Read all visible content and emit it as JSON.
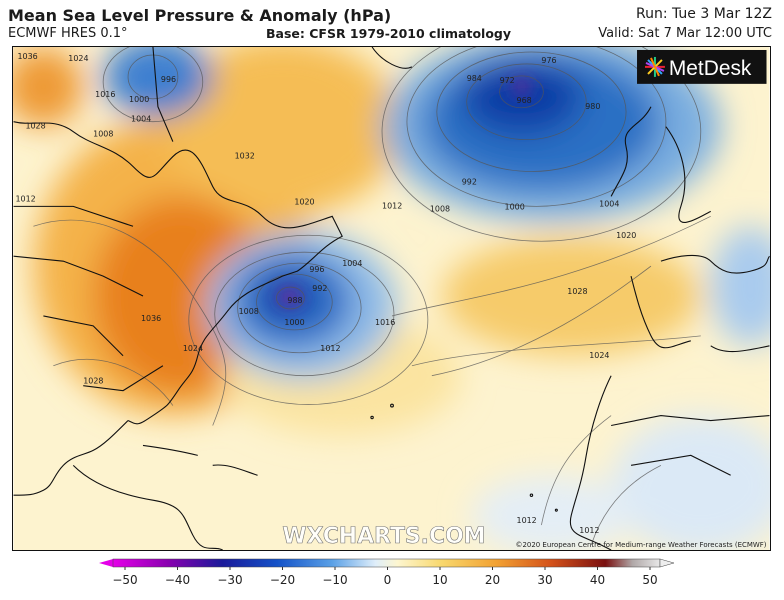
{
  "header": {
    "title": "Mean Sea Level Pressure & Anomaly (hPa)",
    "model": "ECMWF HRES 0.1°",
    "base": "Base: CFSR 1979-2010 climatology",
    "run": "Run: Tue 3 Mar 12Z",
    "valid": "Valid: Sat 7 Mar 12:00 UTC"
  },
  "map": {
    "logo_text": "MetDesk",
    "watermark": "WXCHARTS.COM",
    "copyright": "©2020 European Centre for Medium-range Weather Forecasts (ECMWF)",
    "isobar_labels": [
      "1036",
      "1024",
      "1016",
      "1012",
      "1000",
      "996",
      "1004",
      "1008",
      "1028",
      "1032",
      "1020",
      "1012",
      "1036",
      "1024",
      "1028",
      "976",
      "972",
      "984",
      "968",
      "980",
      "992",
      "1000",
      "1004",
      "1020",
      "1028",
      "1024",
      "996",
      "988",
      "992",
      "1000",
      "1004",
      "1008",
      "1016",
      "1012",
      "1012",
      "1012",
      "1008"
    ],
    "colors": {
      "warm": "#f5a623",
      "strong_warm": "#e8801a",
      "cool": "#1e6fc0",
      "deep_cool": "#0a3fa8",
      "neutral": "#fdf6d8",
      "land_line": "#111111"
    }
  },
  "colorbar": {
    "ticks": [
      "−50",
      "−40",
      "−30",
      "−20",
      "−10",
      "0",
      "10",
      "20",
      "30",
      "40",
      "50"
    ],
    "range": [
      -50,
      50
    ]
  }
}
